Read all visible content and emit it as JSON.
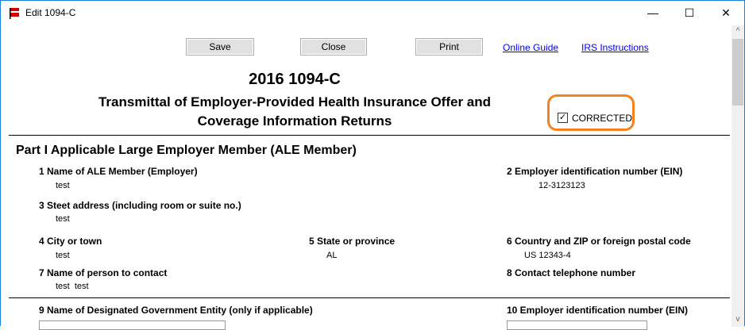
{
  "window": {
    "title": "Edit 1094-C",
    "minimize": "—",
    "maximize": "☐",
    "close": "✕"
  },
  "toolbar": {
    "save": "Save",
    "close": "Close",
    "print": "Print",
    "online_guide": "Online Guide",
    "irs_instructions": "IRS Instructions"
  },
  "form": {
    "year_title": "2016 1094-C",
    "subtitle_line1": "Transmittal of Employer-Provided Health Insurance Offer and",
    "subtitle_line2": "Coverage Information Returns",
    "corrected_label": "CORRECTED",
    "corrected_checked": true,
    "highlight_color": "#f58220"
  },
  "part1": {
    "title": "Part I Applicable Large Employer Member (ALE Member)",
    "fields": {
      "f1": {
        "label": "1 Name of ALE Member (Employer)",
        "value": "test"
      },
      "f2": {
        "label": "2 Employer identification number (EIN)",
        "value": "12-3123123"
      },
      "f3": {
        "label": "3 Steet address (including room or suite no.)",
        "value": "test"
      },
      "f4": {
        "label": "4 City or town",
        "value": "test"
      },
      "f5": {
        "label": "5 State or province",
        "value": "AL"
      },
      "f6": {
        "label": "6 Country and ZIP or foreign postal code",
        "value": "US 12343-4"
      },
      "f7": {
        "label": "7 Name of person to contact",
        "value": "test  test"
      },
      "f8": {
        "label": "8 Contact telephone number",
        "value": ""
      },
      "f9": {
        "label": "9 Name of Designated Government Entity (only if applicable)"
      },
      "f10": {
        "label": "10 Employer identification number (EIN)"
      }
    }
  }
}
